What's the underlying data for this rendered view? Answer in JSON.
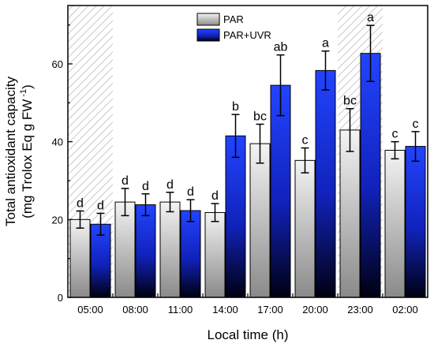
{
  "chart_data": {
    "type": "bar",
    "title": "",
    "xlabel": "Local time (h)",
    "ylabel_line1": "Total antioxidant capacity",
    "ylabel_line2_pre": "(mg Trolox Eq g FW",
    "ylabel_line2_sup": " -1",
    "ylabel_line2_post": ")",
    "ylim": [
      0,
      75
    ],
    "yticks": [
      0,
      20,
      40,
      60
    ],
    "grid": false,
    "legend_position": "top-center",
    "categories": [
      "05:00",
      "08:00",
      "11:00",
      "14:00",
      "17:00",
      "20:00",
      "23:00",
      "02:00"
    ],
    "dark_periods": [
      0,
      6
    ],
    "series": [
      {
        "name": "PAR",
        "fill": "gray-gradient",
        "values": [
          20,
          24.5,
          24.5,
          21.8,
          39.5,
          35.2,
          43,
          37.8
        ],
        "errors": [
          2.2,
          3.5,
          2.5,
          2.3,
          5.0,
          3.2,
          5.5,
          2.2
        ],
        "labels": [
          "d",
          "d",
          "d",
          "d",
          "bc",
          "c",
          "bc",
          "c"
        ]
      },
      {
        "name": "PAR+UVR",
        "fill": "blue-gradient",
        "values": [
          18.8,
          23.8,
          22.3,
          41.5,
          54.5,
          58.3,
          62.7,
          38.8
        ],
        "errors": [
          2.8,
          2.8,
          2.8,
          5.5,
          7.8,
          5.0,
          7.2,
          3.8
        ],
        "labels": [
          "d",
          "d",
          "d",
          "b",
          "ab",
          "a",
          "a",
          "c"
        ]
      }
    ],
    "colors": {
      "par_top": "#f4f4f4",
      "par_bottom": "#8a8a8a",
      "uvr_top": "#2244ff",
      "uvr_bottom": "#000010",
      "hatch": "#c8c8c8"
    }
  }
}
